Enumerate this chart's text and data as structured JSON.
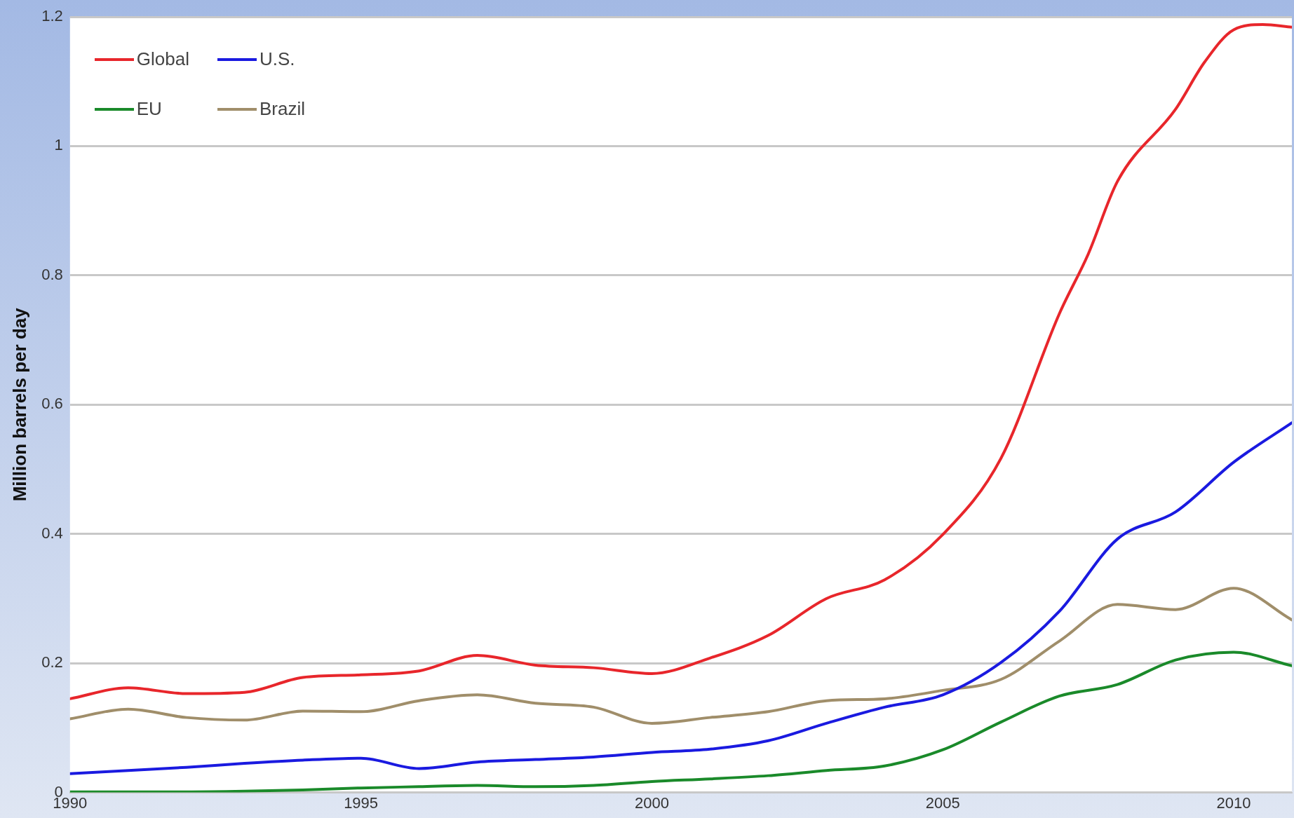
{
  "chart_data": {
    "type": "line",
    "ylabel": "Million barrels per day",
    "xlim": [
      1990,
      2011
    ],
    "xticks": [
      1990,
      1995,
      2000,
      2005,
      2010
    ],
    "ylim": [
      0,
      1.2
    ],
    "yticks": [
      0,
      0.2,
      0.4,
      0.6,
      0.8,
      1,
      1.2
    ],
    "grid": "y",
    "legend": "top left",
    "marker": "none",
    "line_style": "solid",
    "x": [
      1990,
      1991,
      1992,
      1993,
      1994,
      1995,
      1996,
      1997,
      1998,
      1999,
      2000,
      2001,
      2002,
      2003,
      2004,
      2005,
      2006,
      2007,
      2008,
      2009,
      2010,
      2011
    ],
    "series": [
      {
        "name": "Global",
        "color": "#e8262b",
        "x": [
          1990,
          1991,
          1992,
          1993,
          1994,
          1995,
          1996,
          1997,
          1998,
          1999,
          2000,
          2001,
          2002,
          2003,
          2004,
          2005,
          2006,
          2007,
          2007.5,
          2008,
          2009,
          2009.5,
          2010,
          2010.5,
          2011
        ],
        "values": [
          0.145,
          0.162,
          0.153,
          0.155,
          0.178,
          0.182,
          0.188,
          0.212,
          0.197,
          0.193,
          0.184,
          0.208,
          0.243,
          0.3,
          0.329,
          0.399,
          0.517,
          0.74,
          0.833,
          0.945,
          1.057,
          1.13,
          1.18,
          1.188,
          1.184
        ]
      },
      {
        "name": "U.S.",
        "color": "#1a1ae0",
        "values": [
          0.029,
          0.034,
          0.039,
          0.045,
          0.05,
          0.053,
          0.037,
          0.047,
          0.051,
          0.055,
          0.062,
          0.067,
          0.08,
          0.107,
          0.132,
          0.151,
          0.201,
          0.28,
          0.392,
          0.434,
          0.511,
          0.572
        ]
      },
      {
        "name": "EU",
        "color": "#1a8a2a",
        "values": [
          0.001,
          0.001,
          0.001,
          0.002,
          0.004,
          0.007,
          0.009,
          0.011,
          0.009,
          0.011,
          0.017,
          0.021,
          0.026,
          0.034,
          0.041,
          0.066,
          0.109,
          0.149,
          0.167,
          0.205,
          0.217,
          0.196
        ]
      },
      {
        "name": "Brazil",
        "color": "#a08e6a",
        "values": [
          0.114,
          0.129,
          0.116,
          0.112,
          0.126,
          0.125,
          0.142,
          0.151,
          0.138,
          0.132,
          0.107,
          0.116,
          0.125,
          0.142,
          0.145,
          0.158,
          0.175,
          0.234,
          0.291,
          0.283,
          0.316,
          0.267
        ]
      }
    ]
  }
}
